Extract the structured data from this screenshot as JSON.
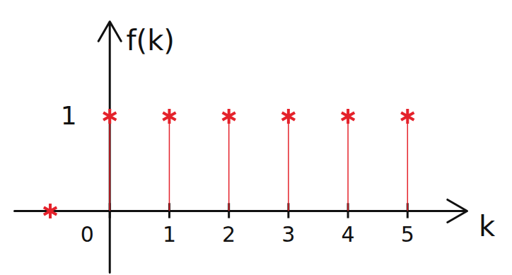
{
  "chart_data": {
    "type": "stem",
    "x_label": "k",
    "y_label": "f(k)",
    "x": [
      -1,
      0,
      1,
      2,
      3,
      4,
      5
    ],
    "values": [
      0,
      1,
      1,
      1,
      1,
      1,
      1
    ],
    "color": "#e4222b",
    "marker": "asterisk",
    "xlim": [
      -1.6,
      6
    ],
    "ylim": [
      -0.65,
      2
    ],
    "xticks": [
      0,
      1,
      2,
      3,
      4,
      5
    ],
    "yticks": [
      1
    ]
  }
}
